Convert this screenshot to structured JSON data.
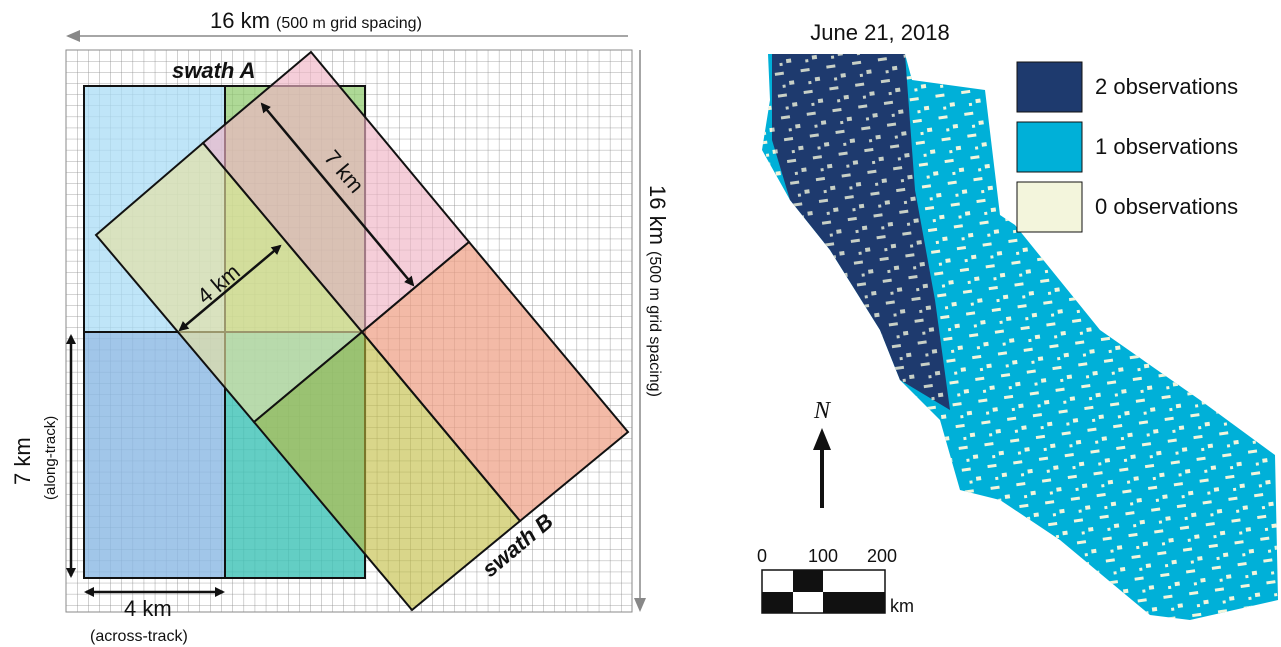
{
  "diagram": {
    "top_label": {
      "main": "16 km",
      "note": "(500 m grid spacing)"
    },
    "right_label": {
      "main": "16 km",
      "note": "(500 m grid spacing)"
    },
    "swath_a": "swath A",
    "swath_b": "swath B",
    "along_length": "7 km",
    "across_width": "4 km",
    "left_label": {
      "main": "7 km",
      "note": "(along-track)"
    },
    "bottom_label": {
      "main": "4 km",
      "note": "(across-track)"
    }
  },
  "map": {
    "date": "June 21, 2018",
    "legend": [
      "2 observations",
      "1 observations",
      "0 observations"
    ],
    "north": "N",
    "scale": {
      "ticks": [
        "0",
        "100",
        "200"
      ],
      "unit": "km"
    }
  }
}
